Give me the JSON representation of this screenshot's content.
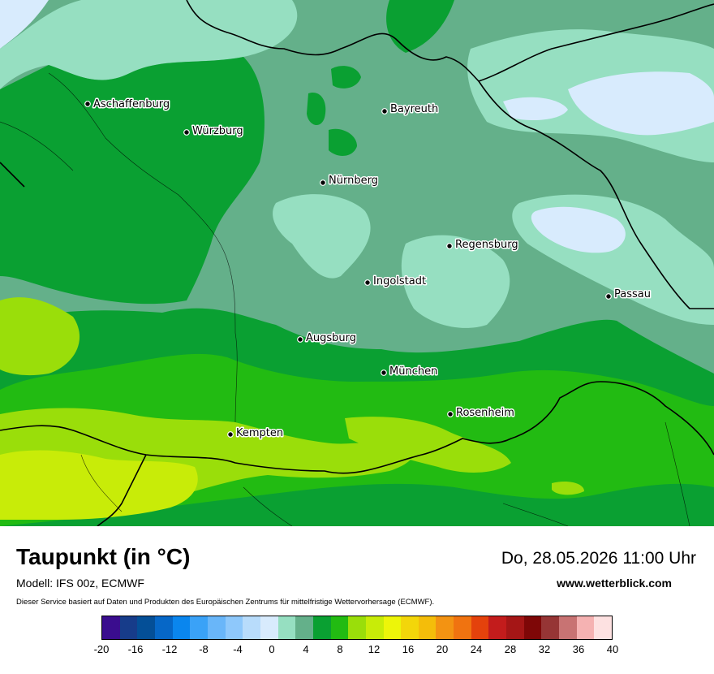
{
  "map": {
    "cities": [
      {
        "name": "Aschaffenburg"
      },
      {
        "name": "Bayreuth"
      },
      {
        "name": "Würzburg"
      },
      {
        "name": "Nürnberg"
      },
      {
        "name": "Regensburg"
      },
      {
        "name": "Ingolstadt"
      },
      {
        "name": "Passau"
      },
      {
        "name": "Augsburg"
      },
      {
        "name": "München"
      },
      {
        "name": "Rosenheim"
      },
      {
        "name": "Kempten"
      }
    ]
  },
  "footer": {
    "title": "Taupunkt (in °C)",
    "datetime": "Do, 28.05.2026 11:00 Uhr",
    "model": "Modell: IFS 00z, ECMWF",
    "website": "www.wetterblick.com",
    "service_note": "Dieser Service basiert auf Daten und Produkten des Europäischen Zentrums für mittelfristige Wettervorhersage (ECMWF)."
  },
  "legend": {
    "colors": [
      "#3a0d8e",
      "#173c8a",
      "#044f97",
      "#0667c7",
      "#0a86ee",
      "#3aa2f7",
      "#69b6f9",
      "#8ec8fb",
      "#b8dcfb",
      "#d8ebfd",
      "#96dfc1",
      "#64b08a",
      "#0aa032",
      "#22bb12",
      "#9ade0a",
      "#c8ec08",
      "#edf509",
      "#f3d60a",
      "#f4bd0a",
      "#f39312",
      "#f07310",
      "#e4420c",
      "#c31c1c",
      "#a51616",
      "#7e0707",
      "#963535",
      "#c87373",
      "#f5b2b2",
      "#fde1e1"
    ],
    "tick_labels": [
      "-20",
      "-16",
      "-12",
      "-8",
      "-4",
      "0",
      "4",
      "8",
      "12",
      "16",
      "20",
      "24",
      "28",
      "32",
      "36",
      "40"
    ]
  }
}
